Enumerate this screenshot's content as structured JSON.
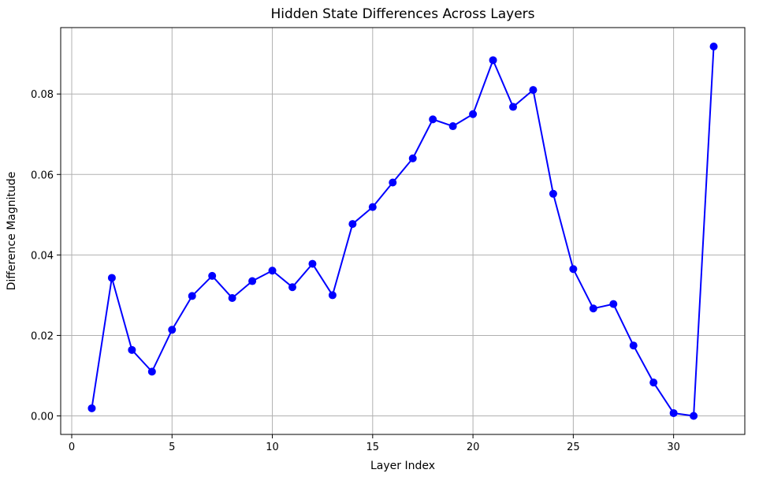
{
  "chart_data": {
    "type": "line",
    "title": "Hidden State Differences Across Layers",
    "xlabel": "Layer Index",
    "ylabel": "Difference Magnitude",
    "xlim": [
      -0.55,
      33.55
    ],
    "ylim": [
      -0.0046,
      0.0965
    ],
    "xticks": [
      0,
      5,
      10,
      15,
      20,
      25,
      30
    ],
    "xtick_labels": [
      "0",
      "5",
      "10",
      "15",
      "20",
      "25",
      "30"
    ],
    "yticks": [
      0.0,
      0.02,
      0.04,
      0.06,
      0.08
    ],
    "ytick_labels": [
      "0.00",
      "0.02",
      "0.04",
      "0.06",
      "0.08"
    ],
    "grid": true,
    "legend": null,
    "series": [
      {
        "color": "#0000ff",
        "marker": "circle",
        "x": [
          1,
          2,
          3,
          4,
          5,
          6,
          7,
          8,
          9,
          10,
          11,
          12,
          13,
          14,
          15,
          16,
          17,
          18,
          19,
          20,
          21,
          22,
          23,
          24,
          25,
          26,
          27,
          28,
          29,
          30,
          31,
          32
        ],
        "y": [
          0.0019,
          0.0343,
          0.0164,
          0.011,
          0.0214,
          0.0298,
          0.0348,
          0.0293,
          0.0335,
          0.0361,
          0.032,
          0.0378,
          0.03,
          0.0477,
          0.0519,
          0.058,
          0.064,
          0.0737,
          0.072,
          0.075,
          0.0884,
          0.0768,
          0.081,
          0.0552,
          0.0365,
          0.0267,
          0.0278,
          0.0175,
          0.0083,
          0.0007,
          0.0,
          0.0918
        ]
      }
    ]
  }
}
